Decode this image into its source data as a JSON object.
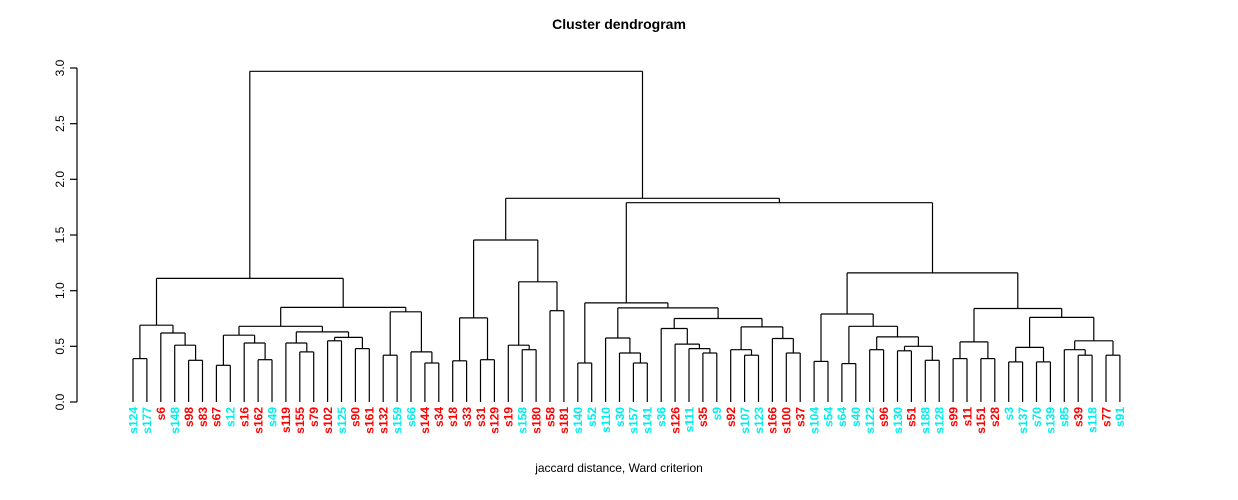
{
  "title": "Cluster dendrogram",
  "caption": "jaccard distance, Ward criterion",
  "axis": {
    "tick_labels": [
      "0.0",
      "0.5",
      "1.0",
      "1.5",
      "2.0",
      "2.5",
      "3.0"
    ],
    "tick_values": [
      0,
      0.5,
      1.0,
      1.5,
      2.0,
      2.5,
      3.0
    ]
  },
  "colors": {
    "cyan": "#00EEEE",
    "red": "#FF0000",
    "line": "#000000"
  },
  "chart_data": {
    "type": "dendrogram",
    "title": "Cluster dendrogram",
    "xlabel": "jaccard distance, Ward criterion",
    "ylabel": "",
    "ylim": [
      0,
      3.0
    ],
    "grid": false,
    "root_height": 2.97,
    "leaves": [
      {
        "label": "s124",
        "color": "cyan"
      },
      {
        "label": "s177",
        "color": "cyan"
      },
      {
        "label": "s6",
        "color": "red"
      },
      {
        "label": "s148",
        "color": "cyan"
      },
      {
        "label": "s98",
        "color": "red"
      },
      {
        "label": "s83",
        "color": "red"
      },
      {
        "label": "s67",
        "color": "red"
      },
      {
        "label": "s12",
        "color": "cyan"
      },
      {
        "label": "s16",
        "color": "red"
      },
      {
        "label": "s162",
        "color": "red"
      },
      {
        "label": "s49",
        "color": "cyan"
      },
      {
        "label": "s119",
        "color": "red"
      },
      {
        "label": "s155",
        "color": "red"
      },
      {
        "label": "s79",
        "color": "red"
      },
      {
        "label": "s102",
        "color": "red"
      },
      {
        "label": "s125",
        "color": "cyan"
      },
      {
        "label": "s90",
        "color": "red"
      },
      {
        "label": "s161",
        "color": "red"
      },
      {
        "label": "s132",
        "color": "red"
      },
      {
        "label": "s159",
        "color": "cyan"
      },
      {
        "label": "s66",
        "color": "cyan"
      },
      {
        "label": "s144",
        "color": "red"
      },
      {
        "label": "s34",
        "color": "red"
      },
      {
        "label": "s18",
        "color": "red"
      },
      {
        "label": "s33",
        "color": "red"
      },
      {
        "label": "s31",
        "color": "red"
      },
      {
        "label": "s129",
        "color": "red"
      },
      {
        "label": "s19",
        "color": "red"
      },
      {
        "label": "s158",
        "color": "cyan"
      },
      {
        "label": "s180",
        "color": "red"
      },
      {
        "label": "s58",
        "color": "red"
      },
      {
        "label": "s181",
        "color": "red"
      },
      {
        "label": "s140",
        "color": "cyan"
      },
      {
        "label": "s52",
        "color": "cyan"
      },
      {
        "label": "s110",
        "color": "cyan"
      },
      {
        "label": "s30",
        "color": "cyan"
      },
      {
        "label": "s157",
        "color": "cyan"
      },
      {
        "label": "s141",
        "color": "cyan"
      },
      {
        "label": "s36",
        "color": "cyan"
      },
      {
        "label": "s126",
        "color": "red"
      },
      {
        "label": "s111",
        "color": "cyan"
      },
      {
        "label": "s35",
        "color": "red"
      },
      {
        "label": "s9",
        "color": "cyan"
      },
      {
        "label": "s92",
        "color": "red"
      },
      {
        "label": "s107",
        "color": "cyan"
      },
      {
        "label": "s123",
        "color": "cyan"
      },
      {
        "label": "s166",
        "color": "red"
      },
      {
        "label": "s100",
        "color": "red"
      },
      {
        "label": "s37",
        "color": "red"
      },
      {
        "label": "s104",
        "color": "cyan"
      },
      {
        "label": "s54",
        "color": "cyan"
      },
      {
        "label": "s64",
        "color": "cyan"
      },
      {
        "label": "s40",
        "color": "cyan"
      },
      {
        "label": "s122",
        "color": "cyan"
      },
      {
        "label": "s96",
        "color": "red"
      },
      {
        "label": "s130",
        "color": "cyan"
      },
      {
        "label": "s51",
        "color": "red"
      },
      {
        "label": "s188",
        "color": "cyan"
      },
      {
        "label": "s128",
        "color": "cyan"
      },
      {
        "label": "s99",
        "color": "red"
      },
      {
        "label": "s11",
        "color": "red"
      },
      {
        "label": "s151",
        "color": "red"
      },
      {
        "label": "s28",
        "color": "red"
      },
      {
        "label": "s3",
        "color": "cyan"
      },
      {
        "label": "s137",
        "color": "cyan"
      },
      {
        "label": "s70",
        "color": "cyan"
      },
      {
        "label": "s139",
        "color": "cyan"
      },
      {
        "label": "s85",
        "color": "cyan"
      },
      {
        "label": "s39",
        "color": "red"
      },
      {
        "label": "s118",
        "color": "cyan"
      },
      {
        "label": "s77",
        "color": "red"
      },
      {
        "label": "s91",
        "color": "cyan"
      }
    ],
    "tree": [
      2.97,
      [
        1.11,
        [
          0.69,
          [
            0.39,
            "s124",
            "s177"
          ],
          [
            0.62,
            "s6",
            [
              0.51,
              "s148",
              [
                0.375,
                "s98",
                "s83"
              ]
            ]
          ]
        ],
        [
          0.85,
          [
            0.68,
            [
              0.6,
              [
                0.33,
                "s67",
                "s12"
              ],
              [
                0.53,
                "s16",
                [
                  0.38,
                  "s162",
                  "s49"
                ]
              ]
            ],
            [
              0.63,
              [
                0.53,
                "s119",
                [
                  0.45,
                  "s155",
                  "s79"
                ]
              ],
              [
                0.58,
                [
                  0.55,
                  "s102",
                  "s125"
                ],
                [
                  0.48,
                  "s90",
                  "s161"
                ]
              ]
            ]
          ],
          [
            0.81,
            [
              0.42,
              "s132",
              "s159"
            ],
            [
              0.45,
              "s66",
              [
                0.35,
                "s144",
                "s34"
              ]
            ]
          ]
        ]
      ],
      [
        1.83,
        [
          1.455,
          [
            0.755,
            [
              0.37,
              "s18",
              "s33"
            ],
            [
              0.38,
              "s31",
              "s129"
            ]
          ],
          [
            1.08,
            [
              0.51,
              "s19",
              [
                0.47,
                "s158",
                "s180"
              ]
            ],
            [
              0.82,
              "s58",
              "s181"
            ]
          ]
        ],
        [
          1.79,
          [
            0.89,
            [
              0.35,
              "s140",
              "s52"
            ],
            [
              0.845,
              [
                0.575,
                "s110",
                [
                  0.44,
                  "s30",
                  [
                    0.35,
                    "s157",
                    "s141"
                  ]
                ]
              ],
              [
                0.75,
                [
                  0.66,
                  "s36",
                  [
                    0.52,
                    "s126",
                    [
                      0.48,
                      "s111",
                      [
                        0.44,
                        "s35",
                        "s9"
                      ]
                    ]
                  ]
                ],
                [
                  0.675,
                  [
                    0.47,
                    "s92",
                    [
                      0.42,
                      "s107",
                      "s123"
                    ]
                  ],
                  [
                    0.57,
                    "s166",
                    [
                      0.44,
                      "s100",
                      "s37"
                    ]
                  ]
                ]
              ]
            ]
          ],
          [
            1.16,
            [
              0.79,
              [
                0.365,
                "s104",
                "s54"
              ],
              [
                0.68,
                [
                  0.345,
                  "s64",
                  "s40"
                ],
                [
                  0.585,
                  [
                    0.47,
                    "s122",
                    "s96"
                  ],
                  [
                    0.5,
                    [
                      0.46,
                      "s130",
                      "s51"
                    ],
                    [
                      0.375,
                      "s188",
                      "s128"
                    ]
                  ]
                ]
              ]
            ],
            [
              0.84,
              [
                0.54,
                [
                  0.39,
                  "s99",
                  "s11"
                ],
                [
                  0.39,
                  "s151",
                  "s28"
                ]
              ],
              [
                0.76,
                [
                  0.49,
                  [
                    0.36,
                    "s3",
                    "s137"
                  ],
                  [
                    0.36,
                    "s70",
                    "s139"
                  ]
                ],
                [
                  0.55,
                  [
                    0.47,
                    "s85",
                    [
                      0.42,
                      "s39",
                      "s118"
                    ]
                  ],
                  [
                    0.42,
                    "s77",
                    "s91"
                  ]
                ]
              ]
            ]
          ]
        ]
      ]
    ]
  }
}
